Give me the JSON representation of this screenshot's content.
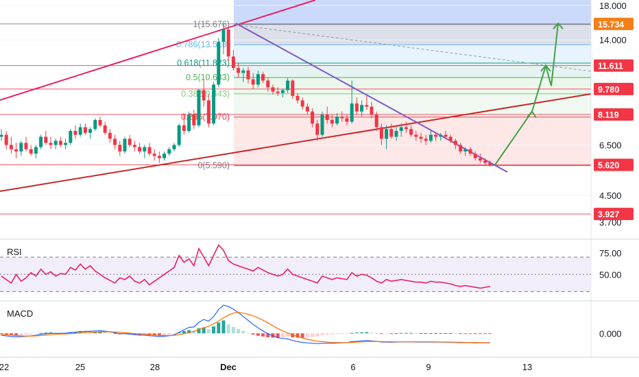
{
  "chart_data": [
    {
      "type": "candlestick",
      "pane": "price",
      "x_ticks": [
        "22",
        "25",
        "28",
        "Dec",
        "6",
        "9",
        "13"
      ],
      "y_ticks": [
        "18.000",
        "14.000",
        "6.500",
        "4.500",
        "3.700"
      ],
      "y_scale": "log",
      "ylim": [
        3.5,
        19.0
      ],
      "candles_ohlc": [
        [
          6.9,
          7.3,
          6.7,
          7.0
        ],
        [
          7.0,
          7.2,
          6.3,
          6.5
        ],
        [
          6.5,
          6.9,
          6.1,
          6.3
        ],
        [
          6.3,
          6.6,
          5.9,
          6.2
        ],
        [
          6.2,
          6.7,
          6.0,
          6.6
        ],
        [
          6.6,
          6.9,
          6.2,
          6.3
        ],
        [
          6.3,
          6.5,
          6.0,
          6.1
        ],
        [
          6.1,
          6.5,
          5.9,
          6.4
        ],
        [
          6.4,
          7.0,
          6.3,
          6.9
        ],
        [
          6.9,
          7.2,
          6.5,
          6.6
        ],
        [
          6.6,
          6.9,
          6.3,
          6.5
        ],
        [
          6.5,
          6.8,
          6.3,
          6.7
        ],
        [
          6.7,
          6.9,
          6.4,
          6.5
        ],
        [
          6.5,
          6.8,
          6.3,
          6.6
        ],
        [
          6.6,
          7.3,
          6.5,
          7.2
        ],
        [
          7.2,
          7.5,
          6.8,
          7.0
        ],
        [
          7.0,
          7.6,
          6.9,
          7.4
        ],
        [
          7.4,
          7.6,
          7.0,
          7.1
        ],
        [
          7.1,
          7.4,
          6.8,
          7.3
        ],
        [
          7.3,
          7.9,
          7.2,
          7.8
        ],
        [
          7.8,
          8.0,
          7.4,
          7.5
        ],
        [
          7.5,
          7.7,
          7.0,
          7.1
        ],
        [
          7.1,
          7.3,
          6.6,
          6.8
        ],
        [
          6.8,
          7.0,
          6.3,
          6.5
        ],
        [
          6.5,
          6.7,
          6.0,
          6.2
        ],
        [
          6.2,
          6.9,
          6.1,
          6.8
        ],
        [
          6.8,
          7.0,
          6.4,
          6.5
        ],
        [
          6.5,
          6.7,
          6.2,
          6.4
        ],
        [
          6.4,
          6.6,
          6.1,
          6.2
        ],
        [
          6.2,
          6.5,
          5.9,
          6.4
        ],
        [
          6.4,
          6.6,
          6.0,
          6.1
        ],
        [
          6.1,
          6.3,
          5.8,
          6.0
        ],
        [
          6.0,
          6.2,
          5.7,
          5.9
        ],
        [
          5.9,
          6.2,
          5.8,
          6.1
        ],
        [
          6.1,
          6.4,
          6.0,
          6.3
        ],
        [
          6.3,
          6.6,
          6.2,
          6.5
        ],
        [
          6.5,
          7.6,
          6.4,
          7.5
        ],
        [
          7.5,
          8.1,
          7.0,
          7.2
        ],
        [
          7.2,
          8.3,
          7.1,
          8.1
        ],
        [
          8.1,
          8.4,
          7.3,
          7.5
        ],
        [
          7.5,
          9.8,
          7.4,
          9.7
        ],
        [
          9.7,
          10.4,
          8.6,
          9.0
        ],
        [
          9.0,
          9.4,
          7.4,
          7.6
        ],
        [
          7.6,
          10.3,
          7.5,
          10.1
        ],
        [
          10.1,
          14.2,
          9.9,
          13.8
        ],
        [
          13.8,
          15.7,
          12.6,
          15.1
        ],
        [
          15.1,
          15.5,
          12.0,
          12.4
        ],
        [
          12.4,
          13.0,
          11.2,
          11.4
        ],
        [
          11.4,
          11.8,
          10.6,
          11.0
        ],
        [
          11.0,
          11.4,
          10.3,
          11.2
        ],
        [
          11.2,
          11.5,
          10.2,
          10.5
        ],
        [
          10.5,
          11.0,
          9.8,
          10.1
        ],
        [
          10.1,
          11.2,
          9.9,
          10.9
        ],
        [
          10.9,
          11.1,
          10.2,
          10.4
        ],
        [
          10.4,
          10.6,
          9.6,
          9.9
        ],
        [
          9.9,
          10.1,
          9.4,
          9.6
        ],
        [
          9.6,
          9.9,
          9.3,
          9.5
        ],
        [
          9.5,
          9.8,
          9.2,
          9.7
        ],
        [
          9.7,
          10.6,
          9.5,
          10.4
        ],
        [
          10.4,
          10.5,
          9.1,
          9.3
        ],
        [
          9.3,
          9.5,
          8.8,
          9.0
        ],
        [
          9.0,
          9.2,
          8.4,
          8.6
        ],
        [
          8.6,
          8.8,
          8.1,
          8.3
        ],
        [
          8.3,
          8.5,
          7.4,
          7.6
        ],
        [
          7.6,
          7.8,
          6.7,
          7.0
        ],
        [
          7.0,
          8.3,
          6.9,
          8.1
        ],
        [
          8.1,
          8.6,
          7.6,
          7.8
        ],
        [
          7.8,
          8.1,
          7.4,
          7.6
        ],
        [
          7.6,
          8.2,
          7.5,
          8.0
        ],
        [
          8.0,
          8.3,
          7.7,
          7.9
        ],
        [
          7.9,
          8.1,
          7.5,
          7.7
        ],
        [
          7.7,
          10.4,
          7.6,
          8.8
        ],
        [
          8.8,
          9.2,
          8.1,
          8.3
        ],
        [
          8.3,
          9.0,
          8.0,
          8.7
        ],
        [
          8.7,
          9.3,
          8.4,
          8.6
        ],
        [
          8.6,
          8.9,
          7.9,
          8.1
        ],
        [
          8.1,
          8.3,
          7.2,
          7.4
        ],
        [
          7.4,
          7.6,
          6.5,
          6.8
        ],
        [
          6.8,
          7.5,
          6.3,
          7.3
        ],
        [
          7.3,
          7.6,
          6.8,
          6.9
        ],
        [
          6.9,
          7.4,
          6.7,
          7.2
        ],
        [
          7.2,
          7.6,
          6.9,
          7.4
        ],
        [
          7.4,
          7.7,
          7.1,
          7.3
        ],
        [
          7.3,
          7.5,
          6.9,
          7.0
        ],
        [
          7.0,
          7.2,
          6.7,
          6.9
        ],
        [
          6.9,
          7.1,
          6.6,
          6.8
        ],
        [
          6.8,
          7.0,
          6.5,
          6.7
        ],
        [
          6.7,
          7.2,
          6.6,
          7.0
        ],
        [
          7.0,
          7.1,
          6.7,
          6.9
        ],
        [
          6.9,
          7.1,
          6.7,
          7.0
        ],
        [
          7.0,
          7.2,
          6.8,
          6.9
        ],
        [
          6.9,
          7.0,
          6.6,
          6.7
        ],
        [
          6.7,
          6.8,
          6.3,
          6.5
        ],
        [
          6.5,
          6.6,
          6.1,
          6.2
        ],
        [
          6.2,
          6.4,
          6.0,
          6.3
        ],
        [
          6.3,
          6.4,
          6.0,
          6.1
        ],
        [
          6.1,
          6.2,
          5.8,
          5.9
        ],
        [
          5.9,
          6.1,
          5.7,
          5.8
        ],
        [
          5.8,
          5.9,
          5.6,
          5.7
        ],
        [
          5.7,
          5.8,
          5.55,
          5.62
        ]
      ],
      "price_levels": [
        {
          "price": 15.734,
          "label": "15.734",
          "color": "#f57f17"
        },
        {
          "price": 11.611,
          "label": "11.611",
          "color": "#f23645"
        },
        {
          "price": 9.78,
          "label": "9.780",
          "color": "#f23645"
        },
        {
          "price": 8.119,
          "label": "8.119",
          "color": "#f23645"
        },
        {
          "price": 5.62,
          "label": "5.620",
          "color": "#f23645"
        },
        {
          "price": 3.927,
          "label": "3.927",
          "color": "#f23645"
        }
      ],
      "fib_levels": [
        {
          "label": "1(15.676)",
          "price": 15.676,
          "color": "#787b86"
        },
        {
          "label": "0.786(13.518)",
          "price": 13.518,
          "color": "#64b5f6"
        },
        {
          "label": "0.618(11.823)",
          "price": 11.823,
          "color": "#089981"
        },
        {
          "label": "0.5(10.633)",
          "price": 10.633,
          "color": "#4caf50"
        },
        {
          "label": "0.382(9.443)",
          "price": 9.443,
          "color": "#81c784"
        },
        {
          "label": "0.236(7.970)",
          "price": 7.97,
          "color": "#f23645"
        },
        {
          "label": "0(5.590)",
          "price": 5.59,
          "color": "#787b86"
        }
      ],
      "projection_path": [
        [
          5.62,
          0
        ],
        [
          8.3,
          1
        ],
        [
          11.6,
          2
        ],
        [
          10.0,
          3
        ],
        [
          15.8,
          4
        ]
      ]
    },
    {
      "type": "line",
      "pane": "rsi",
      "title": "RSI",
      "y_ticks": [
        "75.00",
        "50.00"
      ],
      "ylim": [
        20,
        90
      ],
      "bands": [
        70,
        50,
        30
      ],
      "values": [
        48,
        44,
        40,
        50,
        42,
        46,
        52,
        48,
        56,
        50,
        53,
        48,
        51,
        50,
        58,
        55,
        62,
        56,
        60,
        54,
        50,
        46,
        43,
        40,
        46,
        44,
        48,
        42,
        40,
        44,
        38,
        42,
        46,
        50,
        54,
        58,
        72,
        64,
        68,
        60,
        80,
        70,
        60,
        72,
        84,
        78,
        66,
        62,
        60,
        58,
        56,
        54,
        58,
        55,
        52,
        50,
        48,
        50,
        56,
        50,
        48,
        46,
        44,
        42,
        40,
        48,
        46,
        44,
        46,
        45,
        44,
        52,
        48,
        50,
        49,
        46,
        42,
        40,
        44,
        42,
        43,
        44,
        43,
        42,
        41,
        41,
        40,
        42,
        41,
        41,
        40,
        39,
        37,
        36,
        37,
        36,
        35,
        34,
        35,
        36
      ]
    },
    {
      "type": "bar+line",
      "pane": "macd",
      "title": "MACD",
      "y_ticks": [
        "0.000"
      ],
      "ylim": [
        -1.2,
        1.6
      ],
      "histogram": [
        -0.05,
        -0.08,
        -0.1,
        -0.12,
        -0.1,
        -0.08,
        -0.06,
        -0.04,
        0.02,
        0.04,
        0.05,
        0.03,
        0.02,
        0.02,
        0.05,
        0.06,
        0.08,
        0.07,
        0.06,
        0.08,
        0.09,
        0.06,
        0.03,
        -0.02,
        -0.05,
        -0.04,
        -0.06,
        -0.08,
        -0.09,
        -0.08,
        -0.1,
        -0.11,
        -0.12,
        -0.1,
        -0.07,
        -0.04,
        0.05,
        0.12,
        0.16,
        0.14,
        0.25,
        0.3,
        0.2,
        0.35,
        0.55,
        0.65,
        0.45,
        0.32,
        0.22,
        0.12,
        0.02,
        -0.06,
        -0.12,
        -0.16,
        -0.2,
        -0.22,
        -0.24,
        -0.2,
        -0.16,
        -0.2,
        -0.22,
        -0.22,
        -0.2,
        -0.18,
        -0.16,
        -0.1,
        -0.08,
        -0.06,
        -0.04,
        -0.03,
        -0.02,
        0.02,
        0.04,
        0.05,
        0.06,
        0.04,
        0.02,
        -0.02,
        -0.01,
        -0.01,
        0.01,
        0.02,
        0.02,
        0.02,
        0.01,
        0.01,
        0.01,
        0.01,
        0.01,
        0.01,
        0.01,
        0.01,
        0.0,
        -0.01,
        -0.01,
        -0.01,
        -0.01,
        -0.01,
        -0.01,
        -0.01
      ],
      "macd_line": [
        -0.1,
        -0.13,
        -0.16,
        -0.18,
        -0.17,
        -0.15,
        -0.13,
        -0.1,
        -0.05,
        -0.02,
        0.0,
        0.0,
        0.0,
        0.01,
        0.04,
        0.06,
        0.09,
        0.1,
        0.1,
        0.12,
        0.13,
        0.11,
        0.08,
        0.03,
        -0.02,
        -0.02,
        -0.04,
        -0.07,
        -0.09,
        -0.09,
        -0.12,
        -0.14,
        -0.16,
        -0.15,
        -0.12,
        -0.08,
        0.05,
        0.18,
        0.3,
        0.32,
        0.55,
        0.7,
        0.62,
        0.85,
        1.2,
        1.42,
        1.35,
        1.22,
        1.05,
        0.85,
        0.65,
        0.45,
        0.28,
        0.12,
        -0.02,
        -0.12,
        -0.22,
        -0.26,
        -0.28,
        -0.36,
        -0.42,
        -0.46,
        -0.48,
        -0.5,
        -0.52,
        -0.5,
        -0.5,
        -0.5,
        -0.49,
        -0.48,
        -0.47,
        -0.42,
        -0.4,
        -0.38,
        -0.36,
        -0.38,
        -0.4,
        -0.44,
        -0.44,
        -0.45,
        -0.44,
        -0.43,
        -0.43,
        -0.43,
        -0.44,
        -0.44,
        -0.44,
        -0.44,
        -0.44,
        -0.44,
        -0.45,
        -0.45,
        -0.46,
        -0.47,
        -0.47,
        -0.47,
        -0.48,
        -0.48,
        -0.48,
        -0.48
      ],
      "signal_line": [
        -0.05,
        -0.07,
        -0.09,
        -0.11,
        -0.13,
        -0.14,
        -0.14,
        -0.13,
        -0.11,
        -0.09,
        -0.07,
        -0.05,
        -0.04,
        -0.03,
        -0.01,
        0.0,
        0.02,
        0.04,
        0.05,
        0.06,
        0.07,
        0.08,
        0.08,
        0.07,
        0.05,
        0.03,
        0.01,
        -0.01,
        -0.03,
        -0.04,
        -0.06,
        -0.08,
        -0.1,
        -0.11,
        -0.11,
        -0.1,
        -0.07,
        -0.02,
        0.04,
        0.1,
        0.18,
        0.28,
        0.36,
        0.48,
        0.62,
        0.78,
        0.92,
        1.02,
        1.05,
        1.02,
        0.96,
        0.88,
        0.78,
        0.66,
        0.52,
        0.38,
        0.24,
        0.12,
        0.02,
        -0.08,
        -0.16,
        -0.24,
        -0.3,
        -0.35,
        -0.39,
        -0.42,
        -0.44,
        -0.46,
        -0.47,
        -0.47,
        -0.47,
        -0.46,
        -0.45,
        -0.43,
        -0.42,
        -0.41,
        -0.41,
        -0.42,
        -0.42,
        -0.43,
        -0.43,
        -0.43,
        -0.43,
        -0.43,
        -0.43,
        -0.43,
        -0.43,
        -0.43,
        -0.43,
        -0.44,
        -0.44,
        -0.44,
        -0.45,
        -0.45,
        -0.46,
        -0.46,
        -0.46,
        -0.47,
        -0.47,
        -0.47
      ]
    }
  ],
  "colors": {
    "up": "#089981",
    "down": "#f23645",
    "rsi_line": "#e91e63",
    "macd_line": "#2962ff",
    "signal_line": "#ff6d00",
    "projection": "#43a047"
  }
}
